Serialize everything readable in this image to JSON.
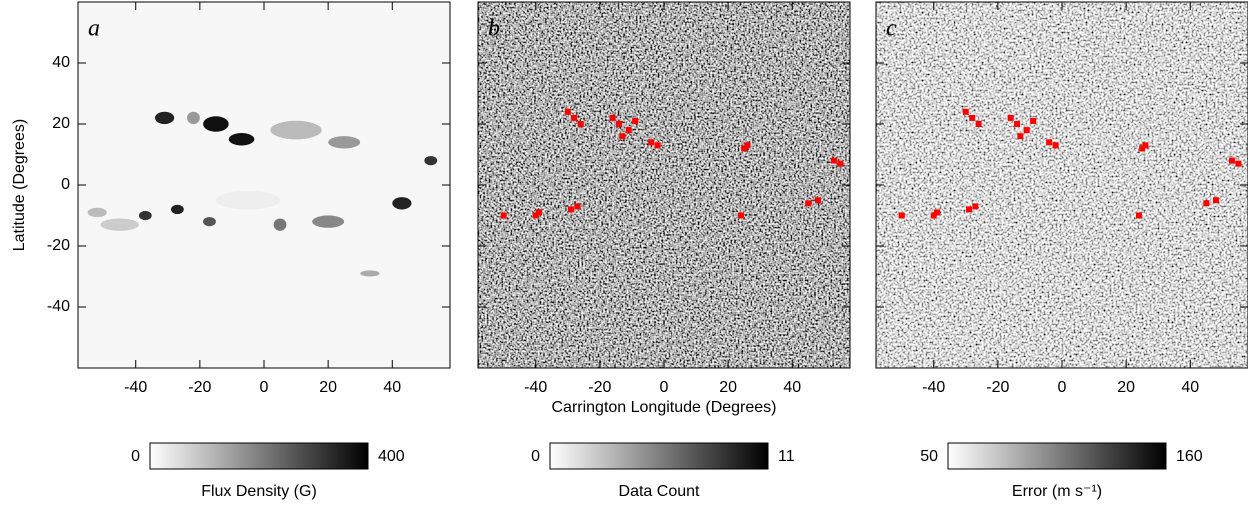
{
  "chart_data": [
    {
      "type": "heatmap",
      "panel_label": "a",
      "ylabel": "Latitude (Degrees)",
      "xlim": [
        -58,
        58
      ],
      "ylim": [
        -60,
        60
      ],
      "xticks": [
        -40,
        -20,
        0,
        20,
        40
      ],
      "yticks": [
        -40,
        -20,
        0,
        20,
        40
      ],
      "colorbar": {
        "label": "Flux Density (G)",
        "range": [
          0,
          400
        ]
      }
    },
    {
      "type": "heatmap",
      "panel_label": "b",
      "xlabel": "Carrington Longitude (Degrees)",
      "xlim": [
        -58,
        58
      ],
      "ylim": [
        -60,
        60
      ],
      "xticks": [
        -40,
        -20,
        0,
        20,
        40
      ],
      "colorbar": {
        "label": "Data Count",
        "range": [
          0,
          11
        ]
      }
    },
    {
      "type": "heatmap",
      "panel_label": "c",
      "xlim": [
        -58,
        58
      ],
      "ylim": [
        -60,
        60
      ],
      "xticks": [
        -40,
        -20,
        0,
        20,
        40
      ],
      "colorbar": {
        "label": "Error (m s⁻¹)",
        "range": [
          50,
          160
        ]
      }
    }
  ]
}
